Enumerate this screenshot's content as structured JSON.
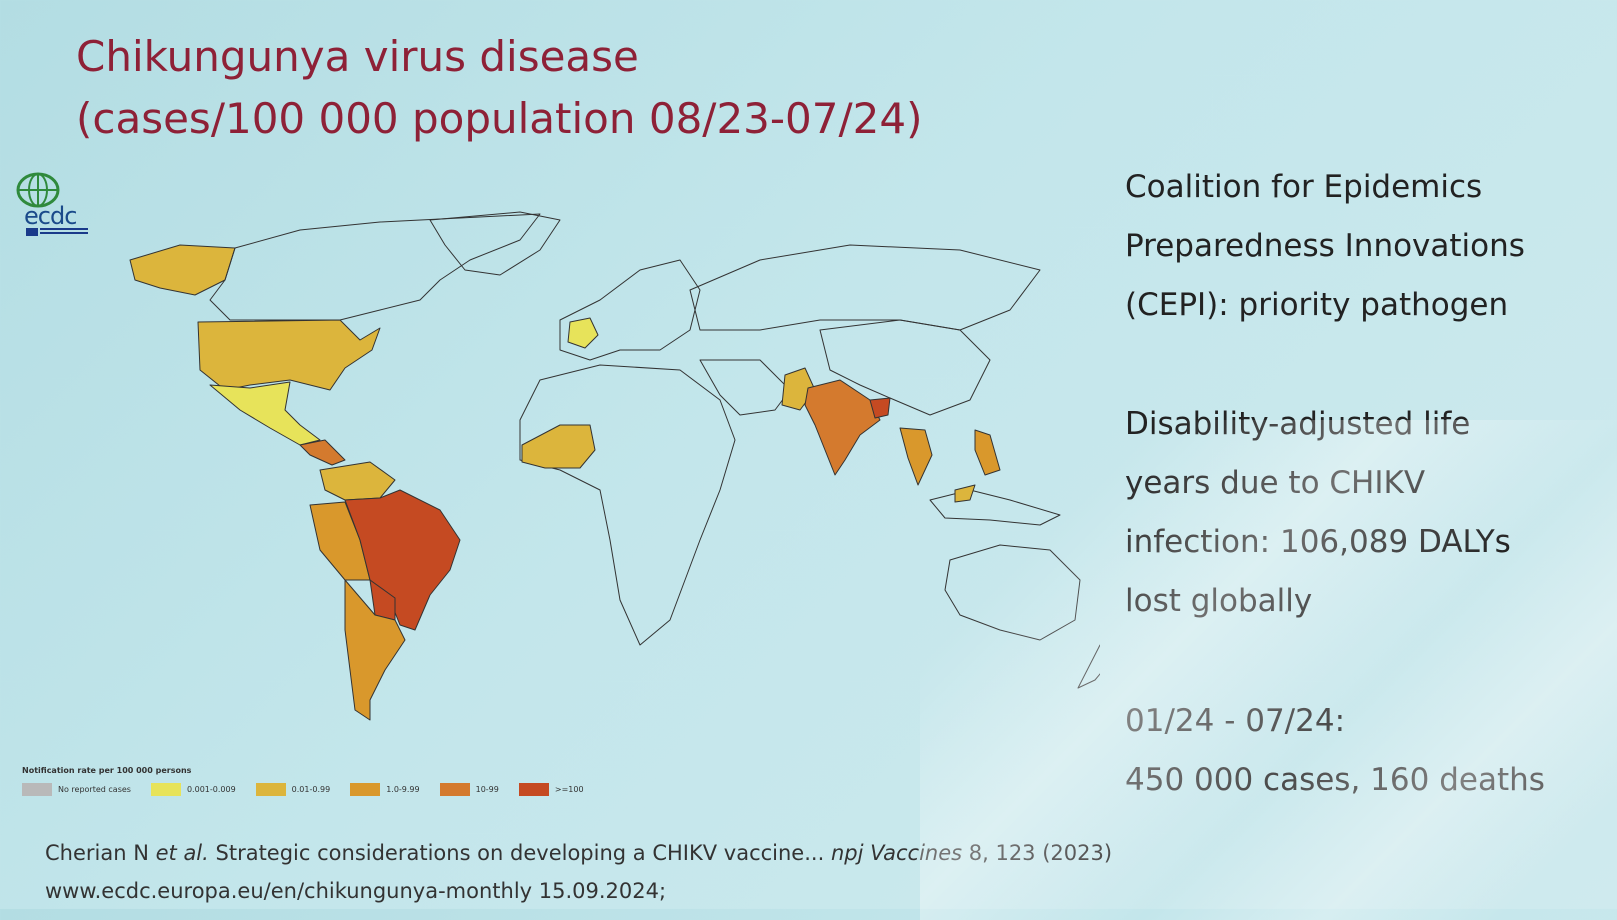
{
  "title": {
    "line1": "Chikungunya virus disease",
    "line2": "(cases/100 000 population 08/23-07/24)"
  },
  "logo": {
    "text": "ecdc"
  },
  "side": {
    "cepi_lines": [
      "Coalition for Epidemics",
      "Preparedness Innovations",
      "(CEPI): priority pathogen"
    ],
    "daly_lines": [
      "Disability-adjusted life",
      "years due to CHIKV",
      "infection:  106,089 DALYs",
      "lost globally"
    ],
    "stats_lines": [
      "01/24 - 07/24:",
      "450 000 cases, 160 deaths"
    ]
  },
  "legend": {
    "title": "Notification rate per 100 000 persons",
    "items": [
      {
        "label": "No reported cases",
        "color": "#b9b9b9"
      },
      {
        "label": "0.001-0.009",
        "color": "#e7e35a"
      },
      {
        "label": "0.01-0.99",
        "color": "#dcb53c"
      },
      {
        "label": "1.0-9.99",
        "color": "#d9982c"
      },
      {
        "label": "10-99",
        "color": "#d47a2e"
      },
      {
        "label": ">=100",
        "color": "#c54a22"
      }
    ]
  },
  "refs": {
    "line1_main": "Cherian N ",
    "line1_etal": "et al.",
    "line1_rest": " Strategic considerations on developing a CHIKV vaccine...  ",
    "line1_journal": "npj Vaccines",
    "line1_tail": " 8, 123 (2023)",
    "line2": "www.ecdc.europa.eu/en/chikungunya-monthly 15.09.2024;"
  }
}
